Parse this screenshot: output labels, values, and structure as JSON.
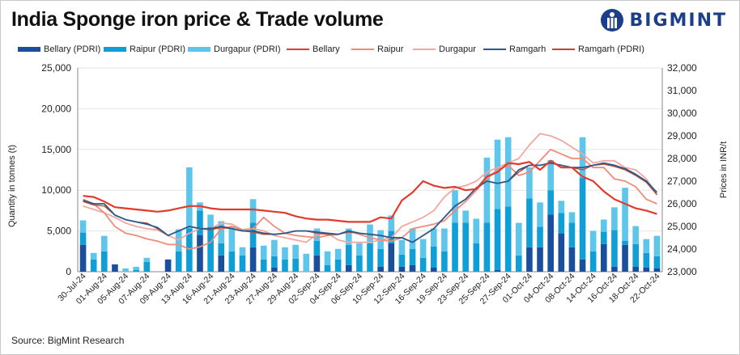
{
  "title": "India Sponge iron price & Trade volume",
  "brand": {
    "name": "BIGMINT",
    "logo": "bigmint-logo-icon"
  },
  "source": "Source: BigMint  Research",
  "colors": {
    "bellary_pdri": "#1b4f9c",
    "raipur_pdri": "#0f9fd6",
    "durgapur_pdri": "#5ec6ea",
    "bellary": "#e23b2e",
    "raipur": "#f08a7a",
    "durgapur": "#f2a7a0",
    "ramgarh": "#2a5a8c",
    "ramgarh_pdri": "#c0472a"
  },
  "legend": [
    {
      "label": "Bellary (PDRI)",
      "kind": "bar",
      "color_key": "bellary_pdri"
    },
    {
      "label": "Raipur (PDRI)",
      "kind": "bar",
      "color_key": "raipur_pdri"
    },
    {
      "label": "Durgapur (PDRI)",
      "kind": "bar",
      "color_key": "durgapur_pdri"
    },
    {
      "label": "Bellary",
      "kind": "line",
      "color_key": "bellary"
    },
    {
      "label": "Raipur",
      "kind": "line",
      "color_key": "raipur"
    },
    {
      "label": "Durgapur",
      "kind": "line",
      "color_key": "durgapur"
    },
    {
      "label": "Ramgarh",
      "kind": "line",
      "color_key": "ramgarh"
    },
    {
      "label": "Ramgarh (PDRI)",
      "kind": "line",
      "color_key": "ramgarh_pdri"
    }
  ],
  "chart_data": {
    "type": "bar",
    "title": "India Sponge iron price & Trade volume",
    "ylabel": "Quantity in tonnes (t)",
    "y2label": "Prices in INR/t",
    "ylim": [
      0,
      25000
    ],
    "y2lim": [
      23000,
      32000
    ],
    "yticks": [
      "0",
      "5,000",
      "10,000",
      "15,000",
      "20,000",
      "25,000"
    ],
    "y2ticks": [
      "23,000",
      "24,000",
      "25,000",
      "26,000",
      "27,000",
      "28,000",
      "29,000",
      "30,000",
      "31,000",
      "32,000"
    ],
    "xtick_labels": [
      "30-Jul-24",
      "01-Aug-24",
      "05-Aug-24",
      "07-Aug-24",
      "09-Aug-24",
      "13-Aug-24",
      "16-Aug-24",
      "21-Aug-24",
      "23-Aug-24",
      "27-Aug-24",
      "29-Aug-24",
      "02-Sep-24",
      "04-Sep-24",
      "06-Sep-24",
      "10-Sep-24",
      "12-Sep-24",
      "16-Sep-24",
      "19-Sep-24",
      "23-Sep-24",
      "25-Sep-24",
      "27-Sep-24",
      "01-Oct-24",
      "04-Oct-24",
      "08-Oct-24",
      "14-Oct-24",
      "16-Oct-24",
      "18-Oct-24",
      "22-Oct-24"
    ],
    "points": 55,
    "bar_series": [
      {
        "name": "Bellary (PDRI)",
        "color_key": "bellary_pdri",
        "values": [
          3300,
          0,
          0,
          900,
          0,
          0,
          0,
          0,
          1500,
          0,
          0,
          4500,
          0,
          2000,
          0,
          0,
          3000,
          0,
          500,
          0,
          0,
          0,
          2000,
          0,
          0,
          800,
          0,
          0,
          600,
          3500,
          600,
          800,
          0,
          500,
          0,
          0,
          0,
          0,
          0,
          200,
          0,
          0,
          3000,
          3000,
          7000,
          4700,
          3000,
          1500,
          0,
          3400,
          600,
          3300,
          600,
          500,
          400
        ]
      },
      {
        "name": "Raipur (PDRI)",
        "color_key": "raipur_pdri",
        "values": [
          1500,
          1500,
          2500,
          0,
          0,
          200,
          1200,
          0,
          0,
          2500,
          5300,
          3000,
          5500,
          1500,
          2500,
          2000,
          3000,
          1500,
          1400,
          1500,
          1600,
          0,
          1800,
          800,
          1500,
          2500,
          2000,
          3500,
          2200,
          1500,
          1500,
          2000,
          1700,
          2600,
          2500,
          6000,
          6000,
          3500,
          6000,
          7500,
          8000,
          2000,
          6000,
          2500,
          3000,
          2500,
          3000,
          10000,
          2500,
          1500,
          4500,
          500,
          2800,
          1800,
          1500
        ]
      },
      {
        "name": "Durgapur (PDRI)",
        "color_key": "durgapur_pdri",
        "values": [
          1500,
          800,
          1900,
          0,
          400,
          400,
          500,
          0,
          0,
          2700,
          7500,
          1000,
          1500,
          2700,
          3000,
          1000,
          2900,
          1700,
          2000,
          1500,
          1700,
          2200,
          1500,
          1700,
          1300,
          2000,
          1500,
          2300,
          2300,
          1900,
          1800,
          2500,
          2300,
          2200,
          2800,
          4000,
          1500,
          3000,
          8000,
          8500,
          8500,
          4000,
          3800,
          3000,
          3700,
          1500,
          1300,
          5000,
          2500,
          1500,
          2800,
          6500,
          2200,
          1700,
          2500
        ]
      }
    ],
    "line_series": [
      {
        "name": "Bellary",
        "color_key": "bellary",
        "values": [
          26350,
          26300,
          26100,
          25850,
          25800,
          25750,
          25700,
          25650,
          25700,
          25800,
          25900,
          25900,
          25800,
          25750,
          25750,
          25750,
          25750,
          25700,
          25650,
          25600,
          25450,
          25350,
          25300,
          25300,
          25250,
          25200,
          25200,
          25200,
          25400,
          25350,
          26150,
          26500,
          27000,
          26800,
          26700,
          26750,
          26600,
          26650,
          27200,
          27400,
          27800,
          27750,
          27850,
          27500,
          27900,
          27600,
          27600,
          27200,
          27000,
          26550,
          26200,
          26000,
          25800,
          25700,
          25550
        ]
      },
      {
        "name": "Raipur",
        "color_key": "raipur",
        "values": [
          26200,
          26000,
          25600,
          25000,
          24700,
          24600,
          24450,
          24350,
          24200,
          24200,
          24000,
          24100,
          24300,
          24900,
          25000,
          24850,
          24900,
          25400,
          25000,
          24700,
          24600,
          24550,
          24500,
          24600,
          24650,
          24800,
          24650,
          24500,
          24400,
          24350,
          24500,
          24900,
          25000,
          25100,
          25250,
          25700,
          26100,
          26600,
          27100,
          27500,
          27700,
          27250,
          27400,
          27900,
          28400,
          28200,
          28000,
          28000,
          27600,
          27600,
          27100,
          27000,
          26750,
          26200,
          26000
        ]
      },
      {
        "name": "Durgapur",
        "color_key": "durgapur",
        "values": [
          25900,
          25750,
          25600,
          25400,
          25150,
          25000,
          24900,
          24850,
          24600,
          24400,
          24700,
          24900,
          24900,
          25150,
          25100,
          24850,
          24900,
          24800,
          24600,
          24500,
          24400,
          24300,
          24650,
          24700,
          24400,
          24300,
          24300,
          24300,
          24400,
          24500,
          25000,
          25200,
          25400,
          25700,
          26300,
          26700,
          26800,
          27000,
          27400,
          27600,
          27800,
          28000,
          28600,
          29100,
          29000,
          28800,
          28500,
          28200,
          27800,
          27900,
          27900,
          27600,
          27500,
          27100,
          26400
        ]
      },
      {
        "name": "Ramgarh",
        "color_key": "ramgarh",
        "values": [
          26150,
          26000,
          26000,
          25500,
          25300,
          25200,
          25100,
          24950,
          24600,
          24800,
          25000,
          24900,
          24900,
          25000,
          24900,
          24800,
          24800,
          24700,
          24650,
          24700,
          24800,
          24800,
          24750,
          24700,
          24650,
          24800,
          24700,
          24650,
          24600,
          24500,
          24500,
          24300,
          24600,
          24900,
          25400,
          25900,
          26200,
          26700,
          27000,
          26900,
          27000,
          27500,
          27700,
          27700,
          27800,
          27700,
          27600,
          27600,
          27700,
          27800,
          27700,
          27550,
          27300,
          27000,
          26500
        ]
      },
      {
        "name": "Ramgarh (PDRI)",
        "color_key": "ramgarh_pdri",
        "values": [
          26100,
          25950,
          25900,
          25500,
          25300,
          25200,
          25150,
          24900,
          24600,
          24800,
          25000,
          24900,
          24850,
          24950,
          24900,
          24800,
          24750,
          24650,
          24650,
          24700,
          24800,
          24800,
          24700,
          24650,
          24650,
          24750,
          24700,
          24650,
          24600,
          24500,
          24500,
          24300,
          24600,
          24900,
          25400,
          25900,
          26200,
          26700,
          27000,
          26900,
          27000,
          27400,
          27700,
          27700,
          27800,
          27700,
          27600,
          27500,
          27700,
          27750,
          27650,
          27500,
          27250,
          26950,
          26400
        ]
      }
    ]
  }
}
